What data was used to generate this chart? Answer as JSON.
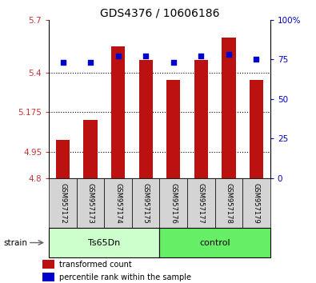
{
  "title": "GDS4376 / 10606186",
  "samples": [
    "GSM957172",
    "GSM957173",
    "GSM957174",
    "GSM957175",
    "GSM957176",
    "GSM957177",
    "GSM957178",
    "GSM957179"
  ],
  "bar_values": [
    5.02,
    5.13,
    5.55,
    5.47,
    5.36,
    5.47,
    5.6,
    5.36
  ],
  "percentile_values": [
    73,
    73,
    77,
    77,
    73,
    77,
    78,
    75
  ],
  "bar_color": "#bb1111",
  "dot_color": "#0000cc",
  "ylim_left": [
    4.8,
    5.7
  ],
  "ylim_right": [
    0,
    100
  ],
  "yticks_left": [
    4.8,
    4.95,
    5.175,
    5.4,
    5.7
  ],
  "ytick_labels_left": [
    "4.8",
    "4.95",
    "5.175",
    "5.4",
    "5.7"
  ],
  "yticks_right": [
    0,
    25,
    50,
    75,
    100
  ],
  "ytick_labels_right": [
    "0",
    "25",
    "50",
    "75",
    "100%"
  ],
  "hlines": [
    4.95,
    5.175,
    5.4
  ],
  "group1_label": "Ts65Dn",
  "group2_label": "control",
  "group_label_title": "strain",
  "group1_color": "#ccffcc",
  "group2_color": "#66ee66",
  "bar_bottom": 4.8,
  "legend_red_label": "transformed count",
  "legend_blue_label": "percentile rank within the sample",
  "title_fontsize": 10,
  "tick_fontsize": 7.5,
  "sample_fontsize": 6,
  "group_fontsize": 8,
  "legend_fontsize": 7
}
